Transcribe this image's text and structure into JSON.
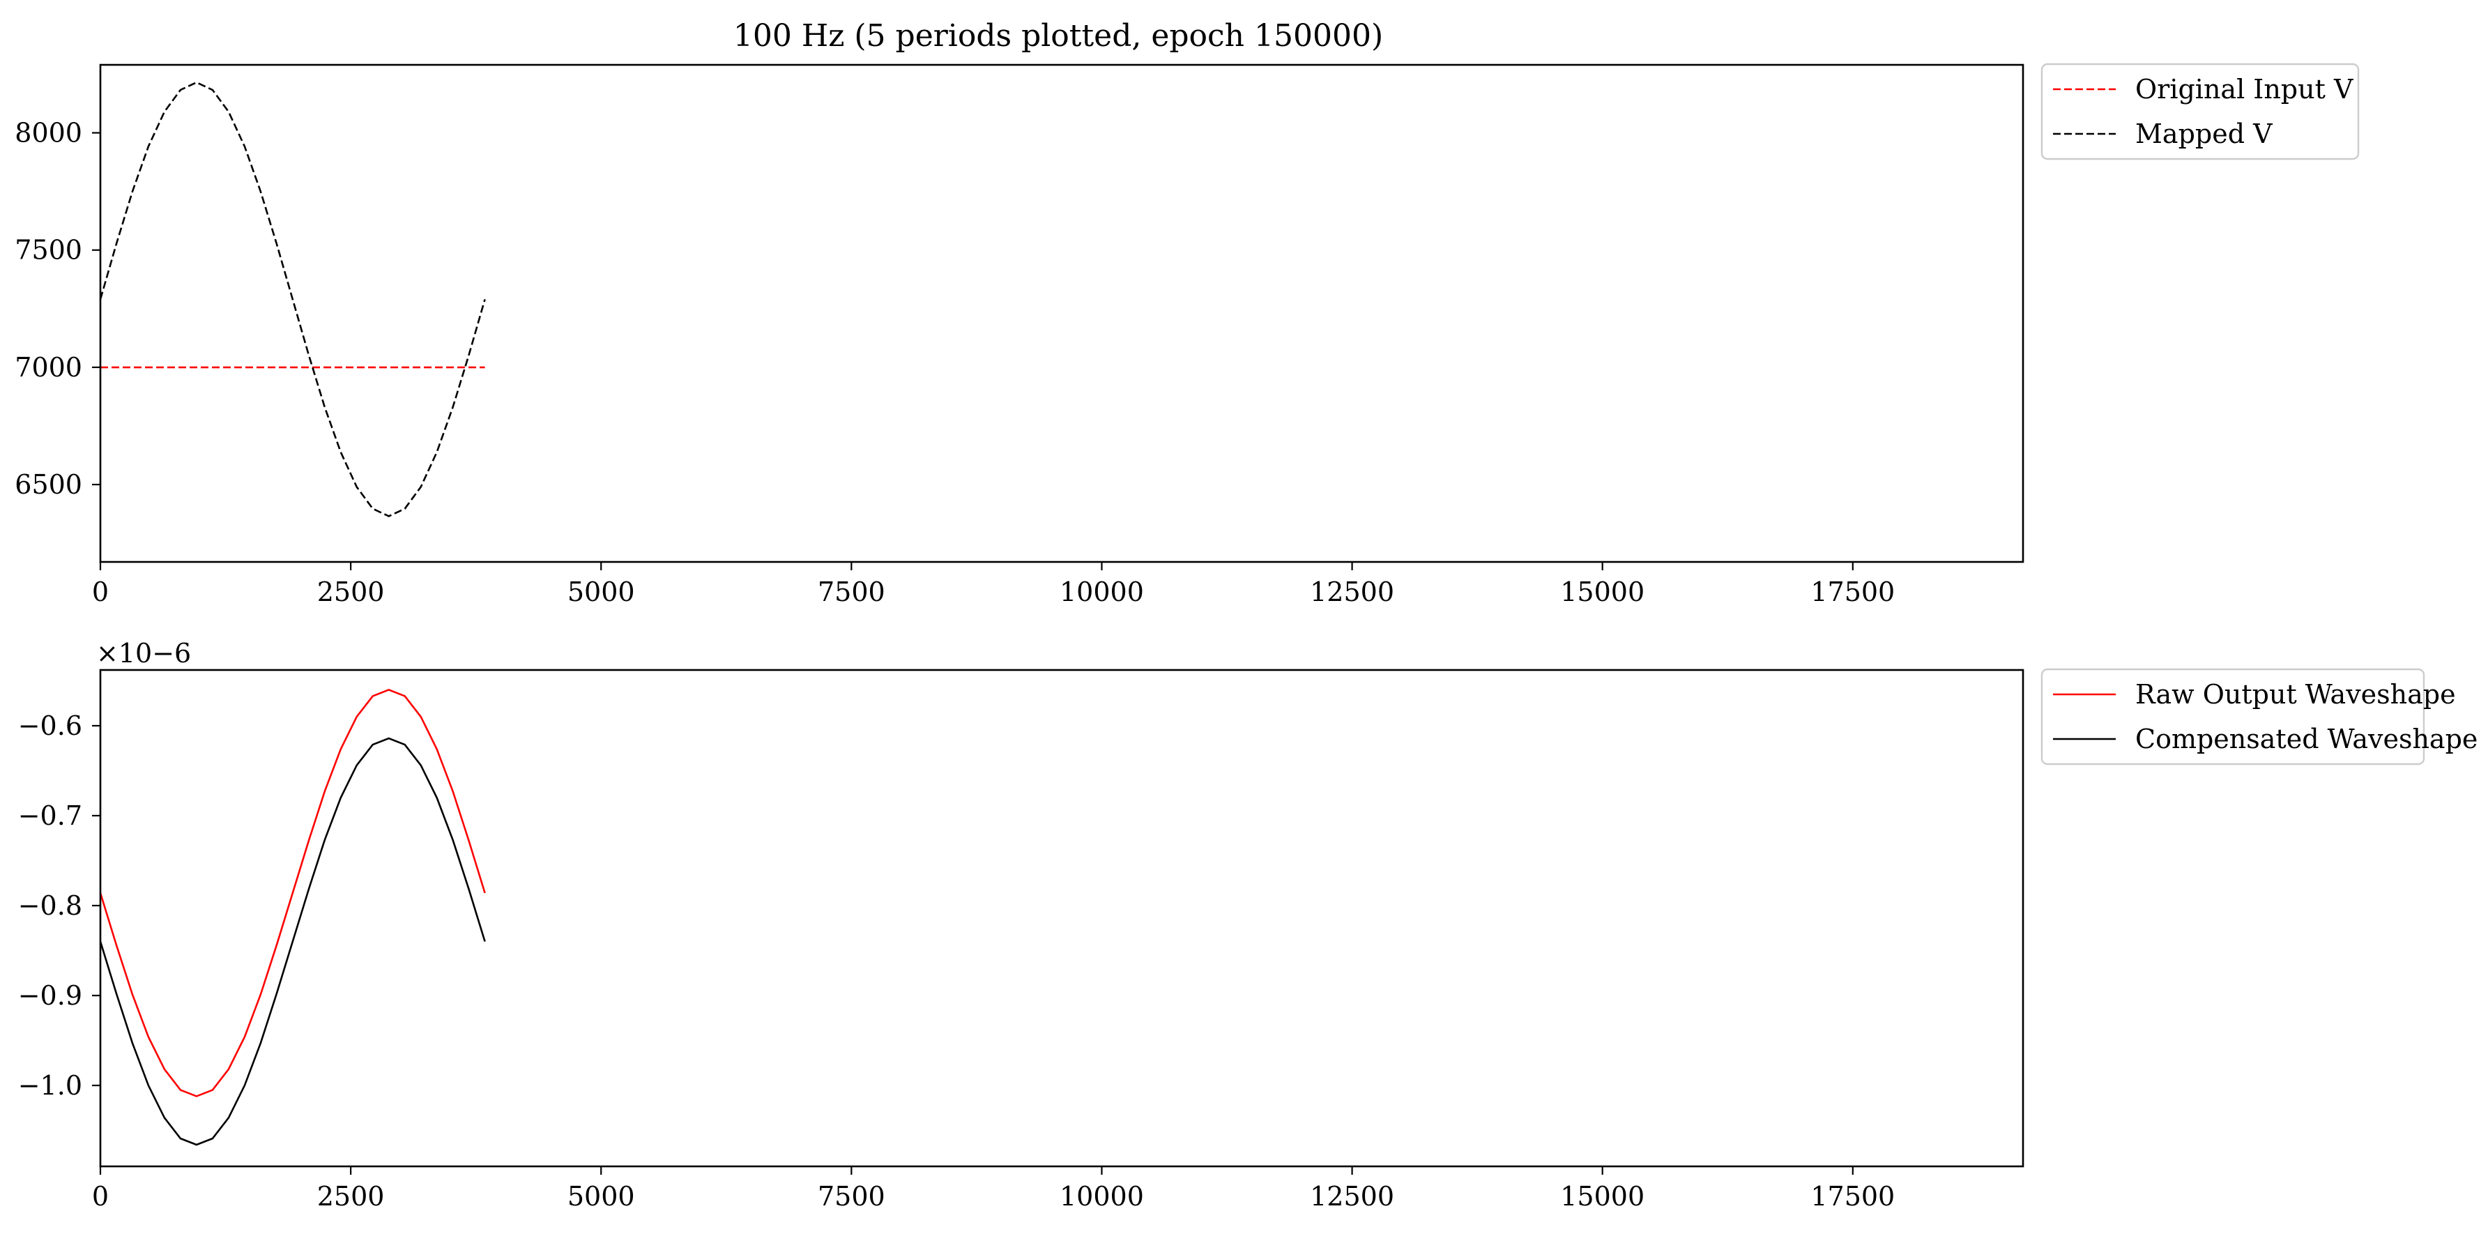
{
  "chart_data": [
    {
      "type": "line",
      "title": "100 Hz (5 periods plotted, epoch 150000)",
      "xlabel": "",
      "ylabel": "",
      "xlim": [
        0,
        19200
      ],
      "ylim": [
        6170,
        8290
      ],
      "grid": false,
      "legend_position": "outside-top-right",
      "x_ticks": [
        0,
        2500,
        5000,
        7500,
        10000,
        12500,
        15000,
        17500
      ],
      "x_tick_labels": [
        "0",
        "2500",
        "5000",
        "7500",
        "10000",
        "12500",
        "15000",
        "17500"
      ],
      "y_ticks": [
        6500,
        7000,
        7500,
        8000
      ],
      "y_tick_labels": [
        "6500",
        "7000",
        "7500",
        "8000"
      ],
      "series": [
        {
          "name": "Original Input V",
          "color": "#ff0000",
          "dash": "dashed",
          "x": [
            0,
            3840
          ],
          "y": [
            7000,
            7000
          ]
        },
        {
          "name": "Mapped V",
          "color": "#000000",
          "dash": "dashed",
          "x": [
            0,
            160,
            320,
            480,
            640,
            800,
            960,
            1120,
            1280,
            1440,
            1600,
            1760,
            1920,
            2080,
            2240,
            2400,
            2560,
            2720,
            2880,
            3040,
            3200,
            3360,
            3520,
            3680,
            3840
          ],
          "y": [
            7290,
            7527,
            7750,
            7942,
            8090,
            8183,
            8215,
            8183,
            8090,
            7942,
            7750,
            7527,
            7290,
            7053,
            6830,
            6638,
            6490,
            6397,
            6365,
            6397,
            6490,
            6638,
            6830,
            7053,
            7290
          ]
        }
      ]
    },
    {
      "type": "line",
      "title": "",
      "xlabel": "",
      "ylabel": "",
      "scale_label": "×10−6",
      "xlim": [
        0,
        19200
      ],
      "ylim": [
        -1.09,
        -0.538
      ],
      "grid": false,
      "legend_position": "outside-top-right",
      "x_ticks": [
        0,
        2500,
        5000,
        7500,
        10000,
        12500,
        15000,
        17500
      ],
      "x_tick_labels": [
        "0",
        "2500",
        "5000",
        "7500",
        "10000",
        "12500",
        "15000",
        "17500"
      ],
      "y_ticks": [
        -1.0,
        -0.9,
        -0.8,
        -0.7,
        -0.6
      ],
      "y_tick_labels": [
        "−1.0",
        "−0.9",
        "−0.8",
        "−0.7",
        "−0.6"
      ],
      "series": [
        {
          "name": "Raw Output Waveshape",
          "color": "#ff0000",
          "dash": "solid",
          "x": [
            0,
            160,
            320,
            480,
            640,
            800,
            960,
            1120,
            1280,
            1440,
            1600,
            1760,
            1920,
            2080,
            2240,
            2400,
            2560,
            2720,
            2880,
            3040,
            3200,
            3360,
            3520,
            3680,
            3840
          ],
          "y": [
            -0.786,
            -0.844,
            -0.899,
            -0.946,
            -0.982,
            -1.005,
            -1.012,
            -1.005,
            -0.982,
            -0.946,
            -0.899,
            -0.844,
            -0.786,
            -0.728,
            -0.673,
            -0.626,
            -0.59,
            -0.567,
            -0.56,
            -0.567,
            -0.59,
            -0.626,
            -0.673,
            -0.728,
            -0.786
          ]
        },
        {
          "name": "Compensated Waveshape",
          "color": "#000000",
          "dash": "solid",
          "x": [
            0,
            160,
            320,
            480,
            640,
            800,
            960,
            1120,
            1280,
            1440,
            1600,
            1760,
            1920,
            2080,
            2240,
            2400,
            2560,
            2720,
            2880,
            3040,
            3200,
            3360,
            3520,
            3680,
            3840
          ],
          "y": [
            -0.84,
            -0.898,
            -0.953,
            -1.0,
            -1.036,
            -1.059,
            -1.066,
            -1.059,
            -1.036,
            -1.0,
            -0.953,
            -0.898,
            -0.84,
            -0.782,
            -0.727,
            -0.68,
            -0.644,
            -0.621,
            -0.614,
            -0.621,
            -0.644,
            -0.68,
            -0.727,
            -0.782,
            -0.84
          ]
        }
      ]
    }
  ]
}
